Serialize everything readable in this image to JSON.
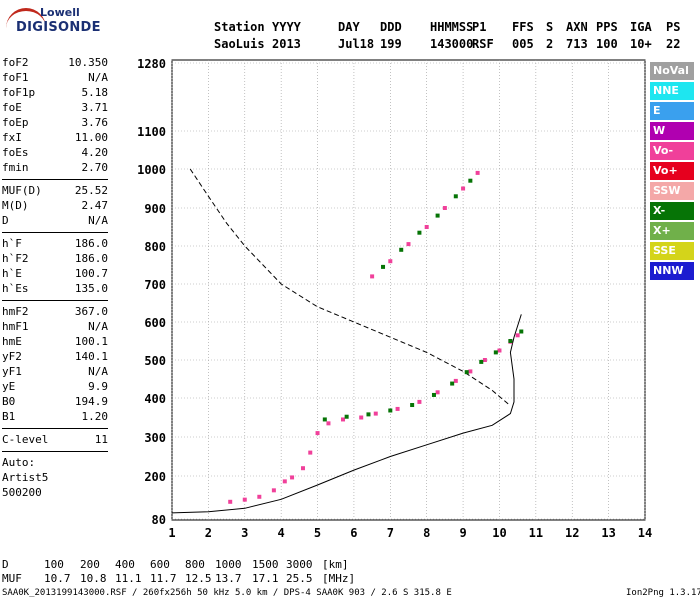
{
  "logo": {
    "line1": "Lowell",
    "line2": "DIGISONDE"
  },
  "header": {
    "station_label": "Station",
    "station_value": "SaoLuis",
    "columns": [
      {
        "label": "YYYY",
        "value": "2013"
      },
      {
        "label": "DAY",
        "value": "Jul18"
      },
      {
        "label": "DDD",
        "value": "199"
      },
      {
        "label": "HHMMSS",
        "value": "143000"
      },
      {
        "label": "P1",
        "value": "RSF"
      },
      {
        "label": "FFS",
        "value": "005"
      },
      {
        "label": "S",
        "value": "2"
      },
      {
        "label": "AXN",
        "value": "713"
      },
      {
        "label": "PPS",
        "value": "100"
      },
      {
        "label": "IGA",
        "value": "10+"
      },
      {
        "label": "PS",
        "value": "22"
      }
    ]
  },
  "params": {
    "group1": [
      {
        "k": "foF2",
        "v": "10.350"
      },
      {
        "k": "foF1",
        "v": "N/A"
      },
      {
        "k": "foF1p",
        "v": "5.18"
      },
      {
        "k": "foE",
        "v": "3.71"
      },
      {
        "k": "foEp",
        "v": "3.76"
      },
      {
        "k": "fxI",
        "v": "11.00"
      },
      {
        "k": "foEs",
        "v": "4.20"
      },
      {
        "k": "fmin",
        "v": "2.70"
      }
    ],
    "group2": [
      {
        "k": "MUF(D)",
        "v": "25.52"
      },
      {
        "k": "M(D)",
        "v": "2.47"
      },
      {
        "k": "D",
        "v": "N/A"
      }
    ],
    "group3": [
      {
        "k": "h`F",
        "v": "186.0"
      },
      {
        "k": "h`F2",
        "v": "186.0"
      },
      {
        "k": "h`E",
        "v": "100.7"
      },
      {
        "k": "h`Es",
        "v": "135.0"
      }
    ],
    "group4": [
      {
        "k": "hmF2",
        "v": "367.0"
      },
      {
        "k": "hmF1",
        "v": "N/A"
      },
      {
        "k": "hmE",
        "v": "100.1"
      },
      {
        "k": "yF2",
        "v": "140.1"
      },
      {
        "k": "yF1",
        "v": "N/A"
      },
      {
        "k": "yE",
        "v": "9.9"
      },
      {
        "k": "B0",
        "v": "194.9"
      },
      {
        "k": "B1",
        "v": "1.20"
      }
    ],
    "group5": [
      {
        "k": "C-level",
        "v": "11"
      }
    ],
    "auto": [
      "Auto:",
      "Artist5",
      "500200"
    ]
  },
  "legend": [
    {
      "label": "NoVal",
      "color": "#a0a0a0"
    },
    {
      "label": "NNE",
      "color": "#1ee6f0"
    },
    {
      "label": "E",
      "color": "#3aa0ee"
    },
    {
      "label": "W",
      "color": "#b000b0"
    },
    {
      "label": "Vo-",
      "color": "#f0409a"
    },
    {
      "label": "Vo+",
      "color": "#e6001e"
    },
    {
      "label": "SSW",
      "color": "#f4a8a8"
    },
    {
      "label": "X-",
      "color": "#067406"
    },
    {
      "label": "X+",
      "color": "#70b04a"
    },
    {
      "label": "SSE",
      "color": "#d4d41a"
    },
    {
      "label": "NNW",
      "color": "#1c1cd0"
    }
  ],
  "chart_data": {
    "type": "scatter",
    "xlim": [
      1,
      14
    ],
    "ylim": [
      80,
      1280
    ],
    "x_ticks": [
      1,
      2,
      3,
      4,
      5,
      6,
      7,
      8,
      9,
      10,
      11,
      12,
      13,
      14
    ],
    "y_ticks": [
      80,
      200,
      300,
      400,
      500,
      600,
      700,
      800,
      900,
      1000,
      1100,
      1280
    ],
    "y_scale": "nonlinear",
    "grid": true,
    "legend_position": "right",
    "series": [
      {
        "color": "#f0409a",
        "points": [
          [
            2.6,
            128
          ],
          [
            3.0,
            134
          ],
          [
            3.4,
            142
          ],
          [
            3.8,
            160
          ],
          [
            4.1,
            185
          ],
          [
            4.3,
            196
          ],
          [
            4.6,
            220
          ],
          [
            4.8,
            260
          ],
          [
            5.0,
            310
          ],
          [
            5.3,
            335
          ],
          [
            5.7,
            345
          ],
          [
            6.2,
            350
          ],
          [
            6.6,
            360
          ],
          [
            7.2,
            372
          ],
          [
            7.8,
            390
          ],
          [
            8.3,
            415
          ],
          [
            8.8,
            445
          ],
          [
            9.2,
            470
          ],
          [
            9.6,
            500
          ],
          [
            10.0,
            525
          ],
          [
            10.3,
            548
          ],
          [
            10.5,
            565
          ]
        ]
      },
      {
        "color": "#067406",
        "points": [
          [
            5.2,
            345
          ],
          [
            5.8,
            352
          ],
          [
            6.4,
            358
          ],
          [
            7.0,
            368
          ],
          [
            7.6,
            382
          ],
          [
            8.2,
            408
          ],
          [
            8.7,
            438
          ],
          [
            9.1,
            468
          ],
          [
            9.5,
            495
          ],
          [
            9.9,
            520
          ],
          [
            10.3,
            550
          ],
          [
            10.6,
            575
          ]
        ]
      },
      {
        "color": "#f0409a",
        "points": [
          [
            6.5,
            720
          ],
          [
            7.0,
            760
          ],
          [
            7.5,
            805
          ],
          [
            8.0,
            850
          ],
          [
            8.5,
            900
          ],
          [
            9.0,
            950
          ],
          [
            9.4,
            990
          ]
        ]
      },
      {
        "color": "#067406",
        "points": [
          [
            6.8,
            745
          ],
          [
            7.3,
            790
          ],
          [
            7.8,
            835
          ],
          [
            8.3,
            880
          ],
          [
            8.8,
            930
          ],
          [
            9.2,
            970
          ]
        ]
      }
    ],
    "lines": [
      {
        "style": "solid",
        "points": [
          [
            1,
            97
          ],
          [
            2,
            100
          ],
          [
            3,
            110
          ],
          [
            4,
            135
          ],
          [
            5,
            175
          ],
          [
            6,
            215
          ],
          [
            7,
            250
          ],
          [
            8,
            280
          ],
          [
            9,
            310
          ],
          [
            9.8,
            330
          ],
          [
            10.3,
            360
          ],
          [
            10.4,
            390
          ],
          [
            10.4,
            450
          ],
          [
            10.3,
            520
          ],
          [
            10.4,
            560
          ],
          [
            10.6,
            620
          ]
        ]
      },
      {
        "style": "dashed",
        "points": [
          [
            1.5,
            1000
          ],
          [
            2,
            930
          ],
          [
            2.5,
            860
          ],
          [
            3,
            800
          ],
          [
            3.5,
            750
          ],
          [
            4,
            700
          ],
          [
            5,
            640
          ],
          [
            6,
            600
          ],
          [
            7,
            560
          ],
          [
            8,
            520
          ],
          [
            9,
            470
          ],
          [
            9.8,
            420
          ],
          [
            10.3,
            380
          ]
        ]
      }
    ]
  },
  "footer": {
    "row1_label": "D",
    "row1_values": [
      "100",
      "200",
      "400",
      "600",
      "800",
      "1000",
      "1500",
      "3000",
      "[km]"
    ],
    "row2_label": "MUF",
    "row2_values": [
      "10.7",
      "10.8",
      "11.1",
      "11.7",
      "12.5",
      "13.7",
      "17.1",
      "25.5",
      "[MHz]"
    ],
    "file_info": "SAA0K_2013199143000.RSF / 260fx256h 50 kHz 5.0 km / DPS-4 SAA0K 903 / 2.6 S 315.8 E",
    "version": "Ion2Png 1.3.17"
  }
}
